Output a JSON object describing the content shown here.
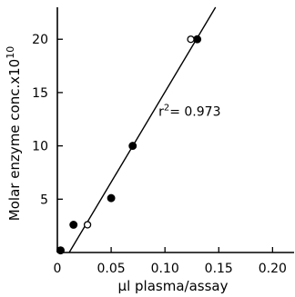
{
  "chart_data": {
    "type": "scatter",
    "xlabel": "μl plasma/assay",
    "ylabel": "Molar enzyme conc.x10",
    "ylabel_exponent": "10",
    "xlim": [
      0,
      0.22
    ],
    "ylim": [
      0,
      23
    ],
    "x_ticks": [
      0,
      0.05,
      0.1,
      0.15,
      0.2
    ],
    "x_tick_labels": [
      "0",
      "0.05",
      "0.10",
      "0.15",
      "0.20"
    ],
    "y_ticks": [
      5,
      10,
      15,
      20
    ],
    "y_tick_labels": [
      "5",
      "10",
      "15",
      "20"
    ],
    "grid": false,
    "series": [
      {
        "marker": "filled-circle",
        "x": [
          0.003,
          0.015,
          0.05,
          0.07,
          0.13
        ],
        "y": [
          0.2,
          2.6,
          5.1,
          10.0,
          20.0
        ]
      },
      {
        "marker": "open-circle",
        "x": [
          0.028,
          0.124
        ],
        "y": [
          2.6,
          20.0
        ]
      }
    ],
    "fit_line": {
      "x": [
        0.011,
        0.147
      ],
      "y": [
        0,
        23
      ]
    },
    "annotations": [
      {
        "text_prefix": "r",
        "text_sup": "2",
        "text_suffix": "= 0.973",
        "x": 0.094,
        "y": 12.8
      }
    ]
  }
}
